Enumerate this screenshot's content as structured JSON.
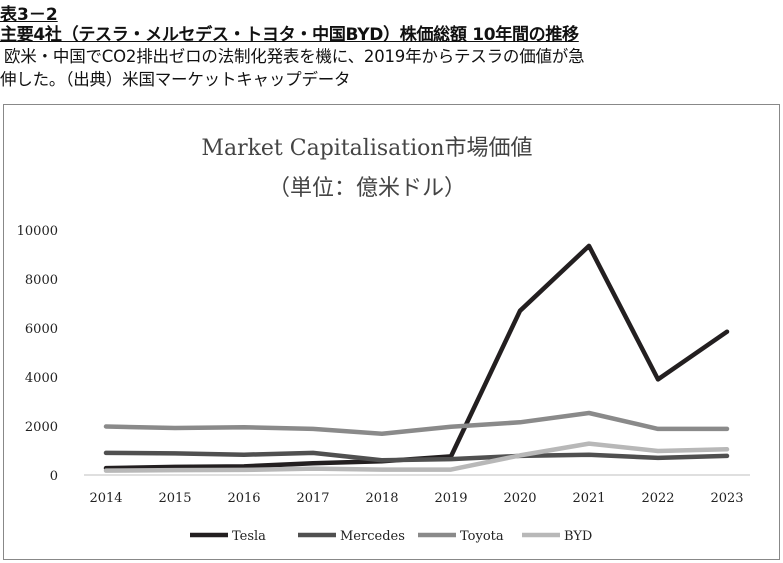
{
  "header": {
    "table_no": "表3－2",
    "title": "主要4社（テスラ・メルセデス・トヨタ・中国BYD）株価総額 10年間の推移",
    "desc_line1": "欧米・中国でCO2排出ゼロの法制化発表を機に、2019年からテスラの価値が急",
    "desc_line2": "伸した。（出典）米国マーケットキャップデータ"
  },
  "chart_data": {
    "type": "line",
    "title": "Market Capitalisation市場価値",
    "subtitle": "（単位：億米ドル）",
    "xlabel": "",
    "ylabel": "",
    "x": [
      "2014",
      "2015",
      "2016",
      "2017",
      "2018",
      "2019",
      "2020",
      "2021",
      "2022",
      "2023"
    ],
    "ylim": [
      0,
      10000
    ],
    "yticks": [
      0,
      2000,
      4000,
      6000,
      8000,
      10000
    ],
    "grid": false,
    "legend_position": "bottom",
    "series": [
      {
        "name": "Tesla",
        "color": "#231f20",
        "values": [
          280,
          330,
          350,
          480,
          560,
          760,
          6700,
          9350,
          3900,
          5850
        ]
      },
      {
        "name": "Mercedes",
        "color": "#505050",
        "values": [
          900,
          880,
          830,
          900,
          600,
          650,
          780,
          830,
          700,
          780
        ]
      },
      {
        "name": "Toyota",
        "color": "#8a8a8a",
        "values": [
          1980,
          1920,
          1950,
          1880,
          1680,
          1970,
          2150,
          2530,
          1880,
          1880
        ]
      },
      {
        "name": "BYD",
        "color": "#b8b8b8",
        "values": [
          180,
          200,
          210,
          260,
          220,
          220,
          800,
          1280,
          980,
          1050
        ]
      }
    ]
  }
}
